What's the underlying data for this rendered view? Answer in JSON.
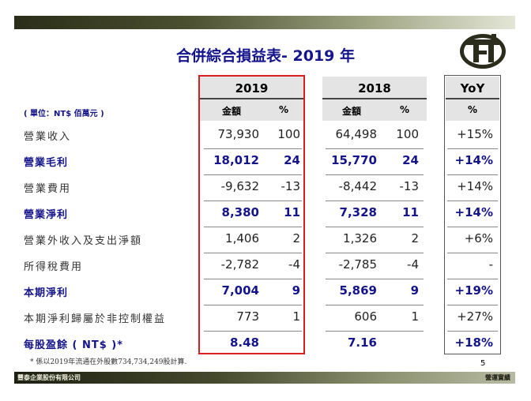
{
  "title": "合併綜合損益表- 2019 年",
  "unit_note": "( 單位：NT$ 佰萬元 )",
  "columns": {
    "y2019": "2019",
    "y2018": "2018",
    "yoy": "YoY",
    "amount": "金額",
    "pct": "%"
  },
  "rows": [
    {
      "label": "營業收入",
      "bold": false,
      "a19": "73,930",
      "p19": "100",
      "a18": "64,498",
      "p18": "100",
      "yoy": "+15%"
    },
    {
      "label": "營業毛利",
      "bold": true,
      "a19": "18,012",
      "p19": "24",
      "a18": "15,770",
      "p18": "24",
      "yoy": "+14%"
    },
    {
      "label": "營業費用",
      "bold": false,
      "a19": "-9,632",
      "p19": "-13",
      "a18": "-8,442",
      "p18": "-13",
      "yoy": "+14%"
    },
    {
      "label": "營業淨利",
      "bold": true,
      "a19": "8,380",
      "p19": "11",
      "a18": "7,328",
      "p18": "11",
      "yoy": "+14%"
    },
    {
      "label": "營業外收入及支出淨額",
      "bold": false,
      "a19": "1,406",
      "p19": "2",
      "a18": "1,326",
      "p18": "2",
      "yoy": "+6%"
    },
    {
      "label": "所得稅費用",
      "bold": false,
      "a19": "-2,782",
      "p19": "-4",
      "a18": "-2,785",
      "p18": "-4",
      "yoy": "-"
    },
    {
      "label": "本期淨利",
      "bold": true,
      "a19": "7,004",
      "p19": "9",
      "a18": "5,869",
      "p18": "9",
      "yoy": "+19%"
    },
    {
      "label": "本期淨利歸屬於非控制權益",
      "bold": false,
      "a19": "773",
      "p19": "1",
      "a18": "606",
      "p18": "1",
      "yoy": "+27%"
    },
    {
      "label": "每股盈餘 ( NT$ )*",
      "bold": true,
      "a19": "8.48",
      "p19": "",
      "a18": "7.16",
      "p18": "",
      "yoy": "+18%"
    }
  ],
  "footnote": "*  係以2019年流通在外股數734,734,249股計算.",
  "page_number": "5",
  "footer_left": "豐泰企業股份有限公司",
  "footer_right": "營運實績",
  "colors": {
    "title": "#14148c",
    "highlight_box": "#d42020",
    "band": "#4a5030"
  }
}
